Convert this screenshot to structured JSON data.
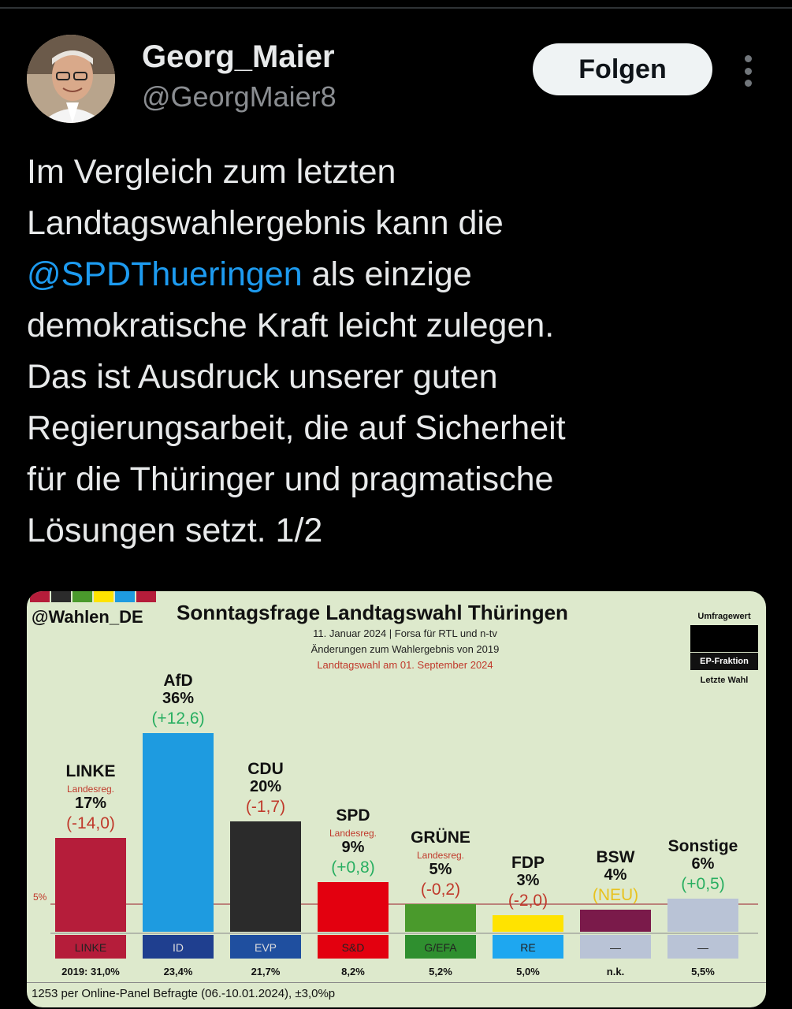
{
  "tweet": {
    "author_name": "Georg_Maier",
    "author_handle": "@GeorgMaier8",
    "follow_label": "Folgen",
    "text_lines": [
      "Im Vergleich zum letzten",
      "Landtagswahlergebnis kann die",
      "als einzige",
      "demokratische Kraft leicht zulegen.",
      "Das ist Ausdruck unserer guten",
      "Regierungsarbeit, die auf Sicherheit",
      "für die Thüringer und pragmatische",
      "Lösungen setzt. 1/2"
    ],
    "mention": "@SPDThueringen"
  },
  "chart_data": {
    "type": "bar",
    "source": "@Wahlen_DE",
    "title": "Sonntagsfrage Landtagswahl Thüringen",
    "subtitle_1": "11. Januar 2024 | Forsa für RTL und n-tv",
    "subtitle_2": "Änderungen zum Wahlergebnis von 2019",
    "subtitle_3": "Landtagswahl am 01. September 2024",
    "legend_top": "Umfragewert",
    "legend_mid": "EP-Fraktion",
    "legend_bottom": "Letzte Wahl",
    "threshold_label": "5%",
    "threshold": 5,
    "footer": "1253 per Online-Panel Befragte (06.-10.01.2024), ±3,0%p",
    "parties": [
      {
        "name": "LINKE",
        "note": "Landesreg.",
        "value": 17,
        "value_label": "17%",
        "change": "(-14,0)",
        "change_color": "#c0392b",
        "color": "#b51d3a",
        "ep": "LINKE",
        "ep_color": "#b51d3a",
        "ep_text": "#222",
        "last": "2019: 31,0%"
      },
      {
        "name": "AfD",
        "note": "",
        "value": 36,
        "value_label": "36%",
        "change": "(+12,6)",
        "change_color": "#27ae60",
        "color": "#1e9be0",
        "ep": "ID",
        "ep_color": "#1f3f8f",
        "ep_text": "#ddd",
        "last": "23,4%"
      },
      {
        "name": "CDU",
        "note": "",
        "value": 20,
        "value_label": "20%",
        "change": "(-1,7)",
        "change_color": "#c0392b",
        "color": "#2b2b2b",
        "ep": "EVP",
        "ep_color": "#1f4f9f",
        "ep_text": "#ddd",
        "last": "21,7%"
      },
      {
        "name": "SPD",
        "note": "Landesreg.",
        "value": 9,
        "value_label": "9%",
        "change": "(+0,8)",
        "change_color": "#27ae60",
        "color": "#e3000f",
        "ep": "S&D",
        "ep_color": "#e3000f",
        "ep_text": "#222",
        "last": "8,2%"
      },
      {
        "name": "GRÜNE",
        "note": "Landesreg.",
        "value": 5,
        "value_label": "5%",
        "change": "(-0,2)",
        "change_color": "#c0392b",
        "color": "#4a9a2c",
        "ep": "G/EFA",
        "ep_color": "#2f8f2f",
        "ep_text": "#222",
        "last": "5,2%"
      },
      {
        "name": "FDP",
        "note": "",
        "value": 3,
        "value_label": "3%",
        "change": "(-2,0)",
        "change_color": "#c0392b",
        "color": "#ffe300",
        "ep": "RE",
        "ep_color": "#1ea7f0",
        "ep_text": "#222",
        "last": "5,0%"
      },
      {
        "name": "BSW",
        "note": "",
        "value": 4,
        "value_label": "4%",
        "change": "(NEU)",
        "change_color": "#e8c21e",
        "color": "#7a1a4a",
        "ep": "—",
        "ep_color": "#b9c3d6",
        "ep_text": "#222",
        "last": "n.k."
      },
      {
        "name": "Sonstige",
        "note": "",
        "value": 6,
        "value_label": "6%",
        "change": "(+0,5)",
        "change_color": "#27ae60",
        "color": "#b9c3d6",
        "ep": "—",
        "ep_color": "#b9c3d6",
        "ep_text": "#222",
        "last": "5,5%"
      }
    ],
    "ylim": [
      0,
      36
    ]
  },
  "colors": {
    "background": "#000000",
    "mention": "#1d9bf0",
    "stripes": [
      "#b51d3a",
      "#2b2b2b",
      "#4a9a2c",
      "#ffe300",
      "#1e9be0",
      "#b51d3a"
    ]
  }
}
